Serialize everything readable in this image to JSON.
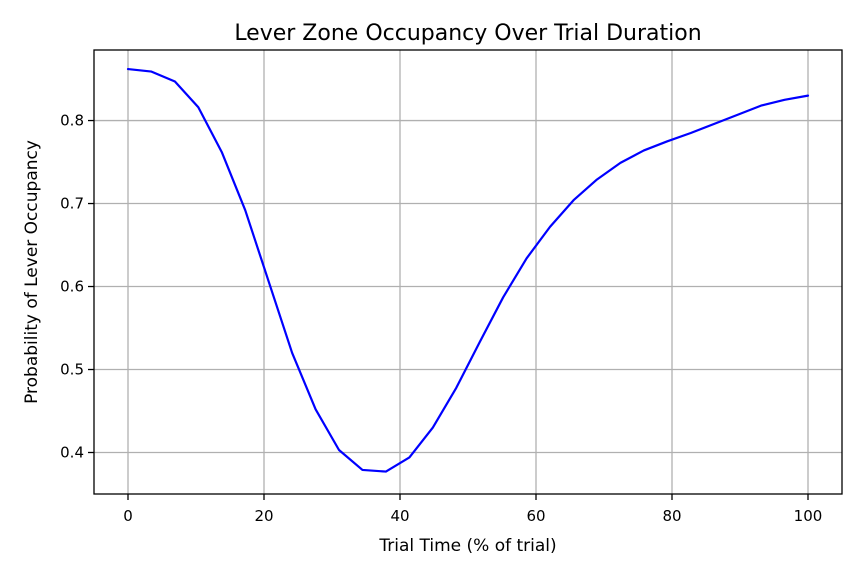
{
  "chart_data": {
    "type": "line",
    "title": "Lever Zone Occupancy Over Trial Duration",
    "xlabel": "Trial Time (% of trial)",
    "ylabel": "Probability of Lever Occupancy",
    "xlim": [
      -5,
      105
    ],
    "ylim": [
      0.35,
      0.885
    ],
    "xticks": [
      0,
      20,
      40,
      60,
      80,
      100
    ],
    "yticks": [
      0.4,
      0.5,
      0.6,
      0.7,
      0.8
    ],
    "xtick_labels": [
      "0",
      "20",
      "40",
      "60",
      "80",
      "100"
    ],
    "ytick_labels": [
      "0.4",
      "0.5",
      "0.6",
      "0.7",
      "0.8"
    ],
    "grid": true,
    "series": [
      {
        "color": "#0000ff",
        "x": [
          0,
          3.45,
          6.9,
          10.34,
          13.79,
          17.24,
          20.69,
          24.14,
          27.59,
          31.03,
          34.48,
          37.93,
          41.38,
          44.83,
          48.28,
          51.72,
          55.17,
          58.62,
          62.07,
          65.52,
          68.97,
          72.41,
          75.86,
          79.31,
          82.76,
          86.21,
          89.66,
          93.1,
          96.55,
          100
        ],
        "y": [
          0.862,
          0.859,
          0.847,
          0.816,
          0.762,
          0.692,
          0.606,
          0.52,
          0.452,
          0.403,
          0.379,
          0.377,
          0.394,
          0.43,
          0.478,
          0.533,
          0.587,
          0.634,
          0.672,
          0.704,
          0.729,
          0.749,
          0.764,
          0.775,
          0.785,
          0.796,
          0.807,
          0.818,
          0.825,
          0.83
        ]
      }
    ]
  }
}
